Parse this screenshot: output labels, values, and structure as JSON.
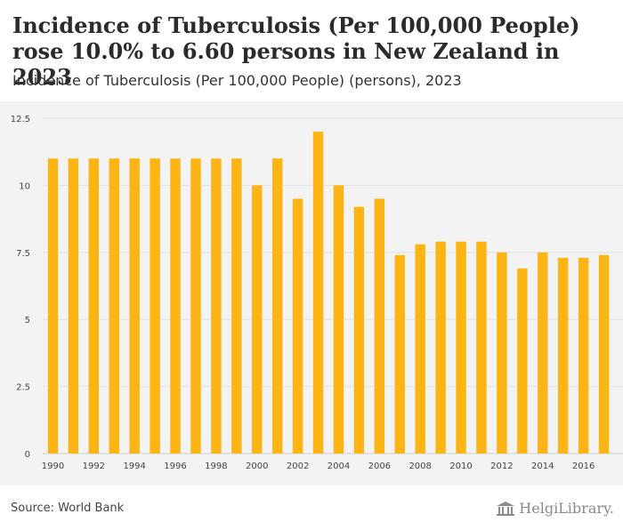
{
  "header": {
    "title": "Incidence of Tuberculosis (Per 100,000 People) rose 10.0% to 6.60 persons in New Zealand in 2023",
    "subtitle": "Incidence of Tuberculosis (Per 100,000 People) (persons), 2023"
  },
  "footer": {
    "source": "Source: World Bank",
    "logo_text": "HelgiLibrary."
  },
  "colors": {
    "bar": "#FDB515",
    "background": "#F3F3F3",
    "grid": "#E2E2E2"
  },
  "chart_data": {
    "type": "bar",
    "x": [
      1990,
      1991,
      1992,
      1993,
      1994,
      1995,
      1996,
      1997,
      1998,
      1999,
      2000,
      2001,
      2002,
      2003,
      2004,
      2005,
      2006,
      2007,
      2008,
      2009,
      2010,
      2011,
      2012,
      2013,
      2014,
      2015,
      2016,
      2017
    ],
    "values": [
      11,
      11,
      11,
      11,
      11,
      11,
      11,
      11,
      11,
      11,
      10,
      11,
      9.5,
      12,
      10,
      9.2,
      9.5,
      7.4,
      7.8,
      7.9,
      7.9,
      7.9,
      7.5,
      6.9,
      7.5,
      7.3,
      7.3,
      7.4
    ],
    "x_tick_labels": [
      "1990",
      "1992",
      "1994",
      "1996",
      "1998",
      "2000",
      "2002",
      "2004",
      "2006",
      "2008",
      "2010",
      "2012",
      "2014",
      "2016"
    ],
    "y_ticks": [
      0,
      2.5,
      5,
      7.5,
      10,
      12.5
    ],
    "y_tick_labels": [
      "0",
      "2.5",
      "5",
      "7.5",
      "10",
      "12.5"
    ],
    "ylim": [
      0,
      12.5
    ],
    "grid": true,
    "legend": false
  }
}
